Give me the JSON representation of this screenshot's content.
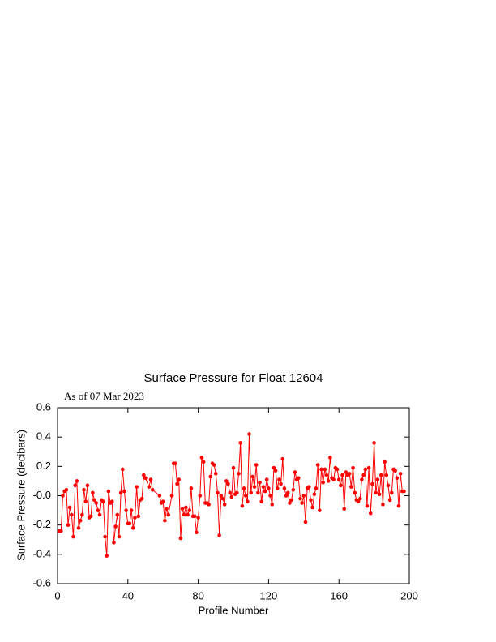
{
  "chart_data": {
    "type": "line",
    "title": "Surface Pressure for Float 12604",
    "subtitle": "As of 07 Mar 2023",
    "x_label": "Profile Number",
    "y_label": "Surface Pressure (decibars)",
    "color": "#ff0000",
    "xlim": [
      0,
      200
    ],
    "xticks": [
      0,
      40,
      80,
      120,
      160,
      200
    ],
    "ylim": [
      -0.6,
      0.6
    ],
    "yticks": [
      0.6,
      0.4,
      0.2,
      {
        "value": 0,
        "label": "-0.0"
      },
      -0.2,
      -0.4,
      -0.6
    ],
    "x": [
      1,
      2,
      3,
      4,
      5,
      6,
      7,
      8,
      9,
      10,
      11,
      12,
      13,
      14,
      15,
      16,
      17,
      18,
      19,
      20,
      21,
      22,
      23,
      24,
      25,
      26,
      27,
      28,
      29,
      30,
      31,
      32,
      33,
      34,
      35,
      36,
      37,
      38,
      39,
      40,
      41,
      42,
      43,
      44,
      45,
      46,
      47,
      48,
      49,
      50,
      52,
      53,
      54,
      58,
      59,
      60,
      61,
      62,
      63,
      65,
      66,
      67,
      68,
      69,
      70,
      71,
      72,
      73,
      74,
      75,
      76,
      77,
      78,
      79,
      80,
      81,
      82,
      83,
      84,
      85,
      86,
      87,
      88,
      89,
      90,
      91,
      92,
      93,
      94,
      95,
      96,
      97,
      98,
      99,
      100,
      101,
      102,
      103,
      104,
      105,
      106,
      107,
      108,
      109,
      110,
      111,
      112,
      113,
      114,
      115,
      116,
      117,
      118,
      119,
      120,
      121,
      122,
      123,
      124,
      125,
      126,
      127,
      128,
      129,
      130,
      131,
      132,
      133,
      134,
      135,
      136,
      137,
      138,
      139,
      140,
      141,
      142,
      143,
      144,
      145,
      146,
      147,
      148,
      149,
      150,
      151,
      152,
      153,
      154,
      155,
      156,
      157,
      158,
      159,
      160,
      161,
      162,
      163,
      164,
      165,
      166,
      167,
      168,
      169,
      170,
      171,
      172,
      173,
      174,
      175,
      176,
      177,
      178,
      179,
      180,
      181,
      182,
      183,
      184,
      185,
      186,
      187,
      188,
      189,
      190,
      191,
      192,
      193,
      194,
      195,
      196,
      197
    ],
    "values": [
      -0.24,
      -0.24,
      0.0,
      0.03,
      0.04,
      -0.2,
      -0.08,
      -0.13,
      -0.28,
      0.07,
      0.1,
      -0.22,
      -0.17,
      -0.13,
      0.04,
      -0.04,
      0.07,
      -0.15,
      -0.14,
      0.02,
      -0.03,
      -0.05,
      -0.1,
      -0.13,
      -0.03,
      -0.04,
      -0.28,
      -0.41,
      0.03,
      -0.05,
      -0.04,
      -0.32,
      -0.21,
      -0.13,
      -0.28,
      0.02,
      0.18,
      0.03,
      -0.1,
      -0.19,
      -0.19,
      -0.1,
      -0.22,
      -0.15,
      0.06,
      -0.14,
      -0.03,
      -0.02,
      0.14,
      0.12,
      0.06,
      0.11,
      0.04,
      0.0,
      -0.05,
      -0.04,
      -0.17,
      -0.09,
      -0.13,
      0.0,
      0.22,
      0.22,
      0.08,
      0.11,
      -0.29,
      -0.09,
      -0.13,
      -0.08,
      -0.13,
      -0.1,
      0.05,
      -0.14,
      -0.14,
      -0.25,
      -0.15,
      0.0,
      0.26,
      0.23,
      -0.05,
      -0.05,
      -0.06,
      0.13,
      0.22,
      0.21,
      0.15,
      0.02,
      -0.27,
      0.0,
      -0.02,
      -0.06,
      0.1,
      0.08,
      0.02,
      -0.01,
      0.19,
      0.01,
      0.02,
      0.15,
      0.36,
      -0.07,
      0.05,
      0.0,
      -0.04,
      0.42,
      0.02,
      0.13,
      0.06,
      0.21,
      0.02,
      0.09,
      -0.04,
      0.06,
      0.03,
      0.11,
      0.05,
      0.0,
      -0.06,
      0.19,
      0.17,
      0.05,
      0.11,
      0.08,
      0.25,
      0.05,
      0.0,
      0.02,
      -0.05,
      -0.03,
      0.04,
      0.16,
      0.11,
      0.12,
      -0.02,
      -0.05,
      0.0,
      -0.18,
      0.05,
      0.06,
      -0.03,
      -0.08,
      0.01,
      0.05,
      0.21,
      -0.1,
      0.18,
      0.09,
      0.18,
      0.14,
      0.1,
      0.26,
      0.12,
      0.11,
      0.19,
      0.18,
      0.11,
      0.07,
      0.14,
      -0.09,
      0.16,
      0.14,
      0.15,
      0.06,
      0.19,
      0.02,
      -0.03,
      -0.04,
      -0.02,
      0.11,
      0.14,
      0.18,
      -0.07,
      0.19,
      -0.12,
      0.08,
      0.36,
      0.02,
      0.11,
      0.01,
      0.14,
      -0.06,
      0.23,
      0.14,
      0.07,
      -0.03,
      0.02,
      0.18,
      0.17,
      0.12,
      -0.07,
      0.15,
      0.03,
      0.03
    ]
  }
}
